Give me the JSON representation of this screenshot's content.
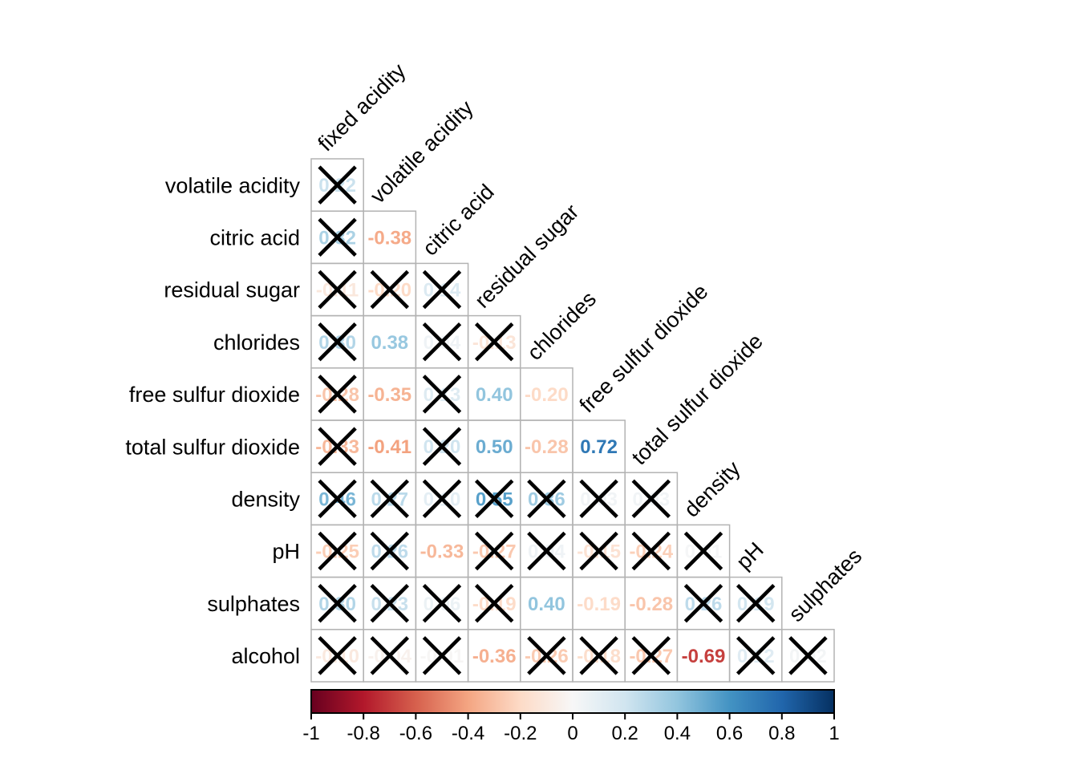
{
  "page": {
    "background": "#ffffff"
  },
  "chart_data": {
    "type": "heatmap",
    "subtype": "correlation-matrix-lower-triangle",
    "title": "",
    "col_labels": [
      "fixed acidity",
      "volatile acidity",
      "citric acid",
      "residual sugar",
      "chlorides",
      "free sulfur dioxide",
      "total sulfur dioxide",
      "density",
      "pH",
      "sulphates"
    ],
    "rows": [
      {
        "label": "volatile acidity",
        "values": [
          0.22
        ],
        "crossed": [
          true
        ]
      },
      {
        "label": "citric acid",
        "values": [
          0.32,
          -0.38
        ],
        "crossed": [
          true,
          false
        ]
      },
      {
        "label": "residual sugar",
        "values": [
          -0.11,
          -0.2,
          0.14
        ],
        "crossed": [
          true,
          true,
          true
        ]
      },
      {
        "label": "chlorides",
        "values": [
          0.3,
          0.38,
          0.04,
          -0.13
        ],
        "crossed": [
          true,
          false,
          true,
          true
        ]
      },
      {
        "label": "free sulfur dioxide",
        "values": [
          -0.28,
          -0.35,
          0.13,
          0.4,
          -0.2
        ],
        "crossed": [
          true,
          false,
          true,
          false,
          false
        ]
      },
      {
        "label": "total sulfur dioxide",
        "values": [
          -0.33,
          -0.41,
          0.2,
          0.5,
          -0.28,
          0.72
        ],
        "crossed": [
          true,
          false,
          true,
          false,
          false,
          false
        ]
      },
      {
        "label": "density",
        "values": [
          0.46,
          0.27,
          0.1,
          0.55,
          0.36,
          0.03,
          0.03
        ],
        "crossed": [
          true,
          true,
          true,
          true,
          true,
          true,
          true
        ]
      },
      {
        "label": "pH",
        "values": [
          -0.25,
          0.26,
          -0.33,
          -0.27,
          0.04,
          -0.15,
          -0.24,
          0.01
        ],
        "crossed": [
          true,
          true,
          false,
          true,
          true,
          true,
          true,
          true
        ]
      },
      {
        "label": "sulphates",
        "values": [
          0.3,
          0.23,
          0.06,
          -0.19,
          0.4,
          -0.19,
          -0.28,
          0.26,
          0.19
        ],
        "crossed": [
          true,
          true,
          true,
          true,
          false,
          false,
          false,
          true,
          true
        ]
      },
      {
        "label": "alcohol",
        "values": [
          -0.1,
          -0.04,
          -0.01,
          -0.36,
          -0.26,
          -0.18,
          -0.27,
          -0.69,
          0.12,
          0.02
        ],
        "crossed": [
          true,
          true,
          true,
          false,
          true,
          true,
          true,
          false,
          true,
          true
        ]
      }
    ],
    "colorbar": {
      "min": -1,
      "max": 1,
      "tick_labels": [
        "-1",
        "-0.8",
        "-0.6",
        "-0.4",
        "-0.2",
        "0",
        "0.2",
        "0.4",
        "0.6",
        "0.8",
        "1"
      ]
    },
    "palette_rdbu": [
      "#67001F",
      "#B2182B",
      "#D6604D",
      "#F4A582",
      "#FDDBC7",
      "#F7F7F7",
      "#D1E5F0",
      "#92C5DE",
      "#4393C3",
      "#2166AC",
      "#053061"
    ],
    "cross_color": "#000000",
    "grid_color": "#b3b3b3",
    "colorbar_border_color": "#000000",
    "label_color": "#000000"
  }
}
